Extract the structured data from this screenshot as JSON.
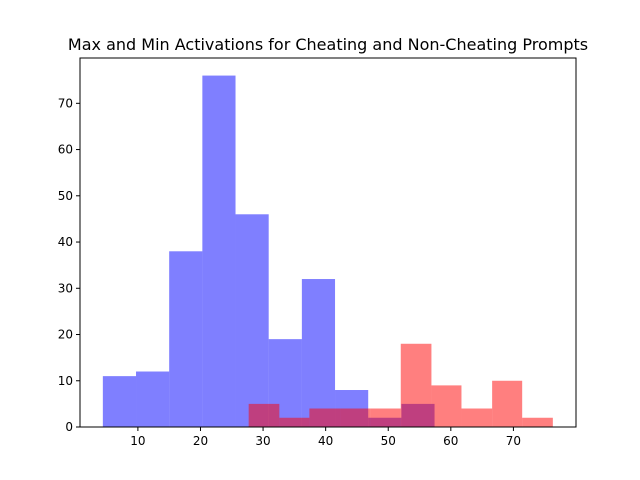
{
  "chart_data": {
    "type": "bar",
    "title": "Max and Min Activations for Cheating and Non-Cheating Prompts",
    "xlabel": "",
    "ylabel": "",
    "xlim": [
      0.75,
      80.0
    ],
    "ylim": [
      0,
      79.8
    ],
    "xticks": [
      10,
      20,
      30,
      40,
      50,
      60,
      70
    ],
    "yticks": [
      0,
      10,
      20,
      30,
      40,
      50,
      60,
      70
    ],
    "grid": false,
    "legend": "none",
    "series": [
      {
        "color": "#0000ff",
        "opacity": 0.5,
        "bins": [
          {
            "x0": 4.4,
            "x1": 9.7,
            "count": 11
          },
          {
            "x0": 9.7,
            "x1": 15.0,
            "count": 12
          },
          {
            "x0": 15.0,
            "x1": 20.3,
            "count": 38
          },
          {
            "x0": 20.3,
            "x1": 25.6,
            "count": 76
          },
          {
            "x0": 25.6,
            "x1": 30.9,
            "count": 46
          },
          {
            "x0": 30.9,
            "x1": 36.2,
            "count": 19
          },
          {
            "x0": 36.2,
            "x1": 41.5,
            "count": 32
          },
          {
            "x0": 41.5,
            "x1": 46.8,
            "count": 8
          },
          {
            "x0": 46.8,
            "x1": 52.1,
            "count": 2
          },
          {
            "x0": 52.1,
            "x1": 57.4,
            "count": 5
          }
        ]
      },
      {
        "color": "#ff0000",
        "opacity": 0.5,
        "bins": [
          {
            "x0": 27.7,
            "x1": 32.6,
            "count": 5
          },
          {
            "x0": 32.6,
            "x1": 37.4,
            "count": 2
          },
          {
            "x0": 37.4,
            "x1": 42.3,
            "count": 4
          },
          {
            "x0": 42.3,
            "x1": 47.1,
            "count": 4
          },
          {
            "x0": 47.1,
            "x1": 52.0,
            "count": 4
          },
          {
            "x0": 52.0,
            "x1": 56.9,
            "count": 18
          },
          {
            "x0": 56.9,
            "x1": 61.7,
            "count": 9
          },
          {
            "x0": 61.7,
            "x1": 66.6,
            "count": 4
          },
          {
            "x0": 66.6,
            "x1": 71.4,
            "count": 10
          },
          {
            "x0": 71.4,
            "x1": 76.3,
            "count": 2
          }
        ]
      }
    ]
  }
}
